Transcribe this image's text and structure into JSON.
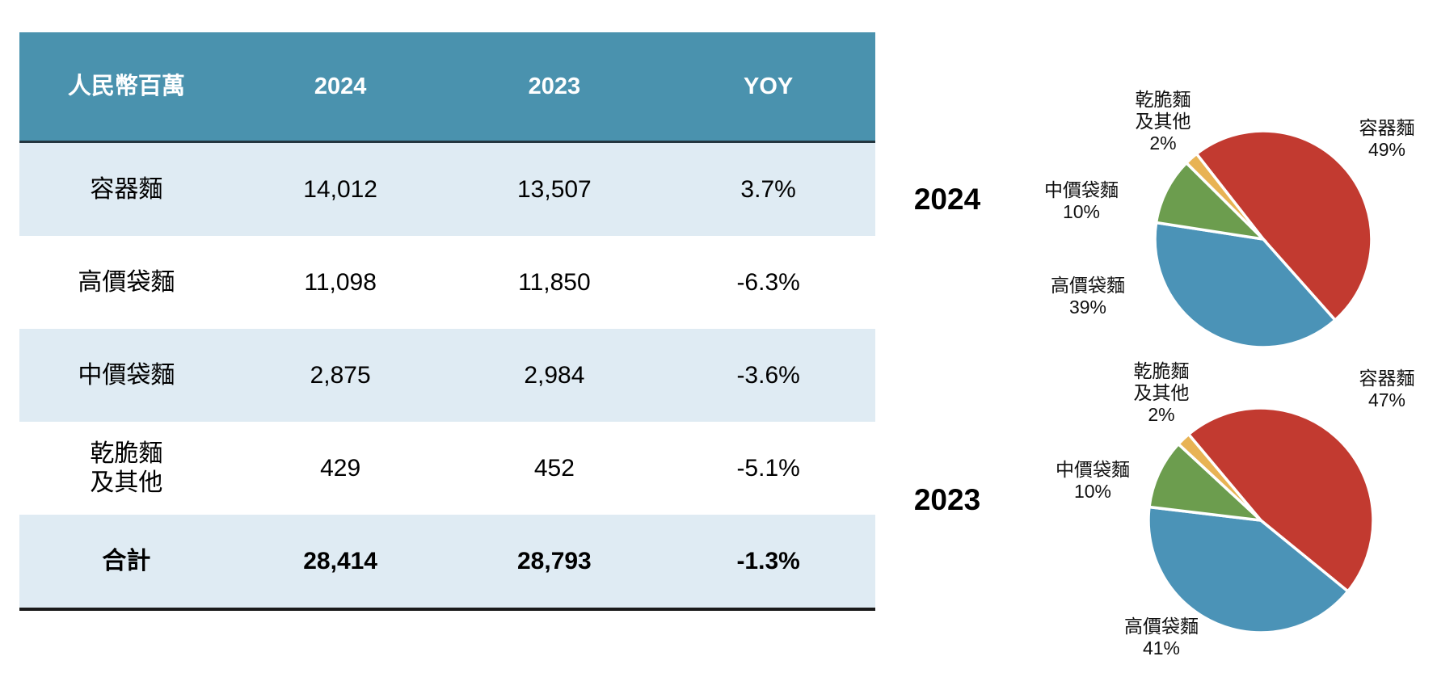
{
  "table": {
    "headers": [
      "人民幣百萬",
      "2024",
      "2023",
      "YOY"
    ],
    "rows": [
      {
        "label": "容器麵",
        "v2024": "14,012",
        "v2023": "13,507",
        "yoy": "3.7%"
      },
      {
        "label": "高價袋麵",
        "v2024": "11,098",
        "v2023": "11,850",
        "yoy": "-6.3%"
      },
      {
        "label": "中價袋麵",
        "v2024": "2,875",
        "v2023": "2,984",
        "yoy": "-3.6%"
      },
      {
        "label": "乾脆麵\n及其他",
        "v2024": "429",
        "v2023": "452",
        "yoy": "-5.1%"
      },
      {
        "label": "合計",
        "v2024": "28,414",
        "v2023": "28,793",
        "yoy": "-1.3%"
      }
    ]
  },
  "colors": {
    "header_teal": "#4a92ae",
    "header_divider": "#24363f",
    "row_stripe": "#dfebf3",
    "table_bottom_border": "#1a1a1a",
    "pie_red": "#c23a30",
    "pie_blue": "#4b93b7",
    "pie_green": "#6c9d4e",
    "pie_orange": "#e8b354",
    "slice_gap_white": "#ffffff"
  },
  "charts": [
    {
      "id": "pie2024",
      "title": "2024",
      "start_angle": -38,
      "radius": 134,
      "slices": [
        {
          "name": "容器麵",
          "pct": 49,
          "color": "#c23a30"
        },
        {
          "name": "高價袋麵",
          "pct": 39,
          "color": "#4b93b7"
        },
        {
          "name": "中價袋麵",
          "pct": 10,
          "color": "#6c9d4e"
        },
        {
          "name": "乾脆麵及其他",
          "pct": 2,
          "color": "#e8b354"
        }
      ],
      "labels": {
        "crispy": "乾脆麵\n及其他\n2%",
        "container": "容器麵\n49%",
        "mid": "中價袋麵\n10%",
        "high": "高價袋麵\n39%"
      }
    },
    {
      "id": "pie2023",
      "title": "2023",
      "start_angle": -40,
      "radius": 139,
      "slices": [
        {
          "name": "容器麵",
          "pct": 47,
          "color": "#c23a30"
        },
        {
          "name": "高價袋麵",
          "pct": 41,
          "color": "#4b93b7"
        },
        {
          "name": "中價袋麵",
          "pct": 10,
          "color": "#6c9d4e"
        },
        {
          "name": "乾脆麵及其他",
          "pct": 2,
          "color": "#e8b354"
        }
      ],
      "labels": {
        "crispy": "乾脆麵\n及其他\n2%",
        "container": "容器麵\n47%",
        "mid": "中價袋麵\n10%",
        "high": "高價袋麵\n41%"
      }
    }
  ],
  "chart_data": [
    {
      "type": "table",
      "title": "人民幣百萬",
      "columns": [
        "人民幣百萬",
        "2024",
        "2023",
        "YOY"
      ],
      "rows": [
        [
          "容器麵",
          14012,
          13507,
          "3.7%"
        ],
        [
          "高價袋麵",
          11098,
          11850,
          "-6.3%"
        ],
        [
          "中價袋麵",
          2875,
          2984,
          "-3.6%"
        ],
        [
          "乾脆麵及其他",
          429,
          452,
          "-5.1%"
        ],
        [
          "合計",
          28414,
          28793,
          "-1.3%"
        ]
      ]
    },
    {
      "type": "pie",
      "title": "2024",
      "categories": [
        "容器麵",
        "高價袋麵",
        "中價袋麵",
        "乾脆麵及其他"
      ],
      "values": [
        49,
        39,
        10,
        2
      ],
      "unit": "%",
      "colors": [
        "#c23a30",
        "#4b93b7",
        "#6c9d4e",
        "#e8b354"
      ],
      "legend_position": "around-slices",
      "start_angle_deg_clockwise_from_top": -38
    },
    {
      "type": "pie",
      "title": "2023",
      "categories": [
        "容器麵",
        "高價袋麵",
        "中價袋麵",
        "乾脆麵及其他"
      ],
      "values": [
        47,
        41,
        10,
        2
      ],
      "unit": "%",
      "colors": [
        "#c23a30",
        "#4b93b7",
        "#6c9d4e",
        "#e8b354"
      ],
      "legend_position": "around-slices",
      "start_angle_deg_clockwise_from_top": -40
    }
  ]
}
